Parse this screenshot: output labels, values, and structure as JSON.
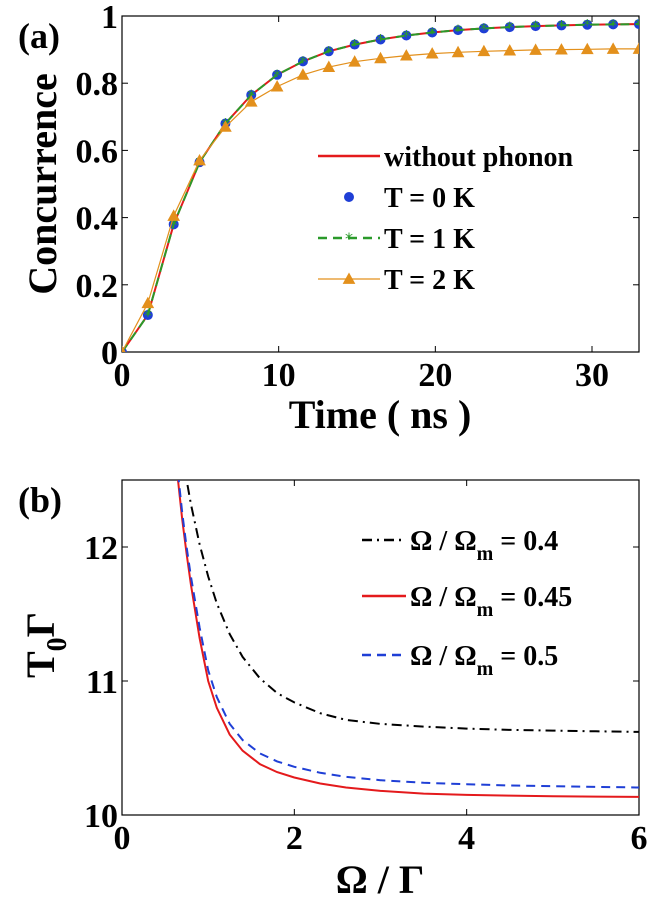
{
  "chart_data": [
    {
      "panel_label": "(a)",
      "type": "line",
      "xlabel": "Time ( ns )",
      "ylabel": "Concurrence",
      "xlim": [
        0,
        33
      ],
      "ylim": [
        0,
        1
      ],
      "xticks": [
        "0",
        "10",
        "20",
        "30"
      ],
      "yticks": [
        "0",
        "0.2",
        "0.4",
        "0.6",
        "0.8",
        "1"
      ],
      "grid": false,
      "legend_position": "center-right",
      "x": [
        0,
        1.65,
        3.3,
        4.95,
        6.6,
        8.25,
        9.9,
        11.55,
        13.2,
        14.85,
        16.5,
        18.15,
        19.8,
        21.45,
        23.1,
        24.75,
        26.4,
        28.05,
        29.7,
        31.35,
        33
      ],
      "series": [
        {
          "name": "without phonon",
          "color": "#e41a1c",
          "style": "solid",
          "marker": "none",
          "values": [
            0,
            0.11,
            0.38,
            0.565,
            0.68,
            0.765,
            0.825,
            0.865,
            0.895,
            0.915,
            0.93,
            0.942,
            0.951,
            0.958,
            0.963,
            0.967,
            0.97,
            0.972,
            0.974,
            0.975,
            0.976
          ]
        },
        {
          "name": "T = 0 K",
          "color": "#1f3fd6",
          "style": "none",
          "marker": "circle",
          "values": [
            0,
            0.11,
            0.38,
            0.565,
            0.68,
            0.765,
            0.825,
            0.865,
            0.895,
            0.915,
            0.93,
            0.942,
            0.951,
            0.958,
            0.963,
            0.967,
            0.97,
            0.972,
            0.974,
            0.975,
            0.976
          ]
        },
        {
          "name": "T = 1 K",
          "color": "#2a9a2a",
          "style": "dashed",
          "marker": "star",
          "values": [
            0,
            0.11,
            0.38,
            0.565,
            0.68,
            0.765,
            0.825,
            0.865,
            0.895,
            0.915,
            0.93,
            0.942,
            0.951,
            0.958,
            0.963,
            0.967,
            0.97,
            0.972,
            0.974,
            0.975,
            0.976
          ]
        },
        {
          "name": "T = 2 K",
          "color": "#e3901c",
          "style": "solid",
          "marker": "triangle",
          "values": [
            0,
            0.145,
            0.405,
            0.57,
            0.67,
            0.745,
            0.79,
            0.825,
            0.848,
            0.864,
            0.874,
            0.882,
            0.888,
            0.892,
            0.895,
            0.897,
            0.899,
            0.9,
            0.901,
            0.902,
            0.902
          ]
        }
      ]
    },
    {
      "panel_label": "(b)",
      "type": "line",
      "xlabel": "Ω / Γ",
      "ylabel_main": "T",
      "ylabel_sub": "0",
      "ylabel_tail": "Γ",
      "xlim": [
        0,
        6
      ],
      "ylim": [
        10,
        12.5
      ],
      "xticks": [
        "0",
        "2",
        "4",
        "6"
      ],
      "yticks": [
        "10",
        "11",
        "12"
      ],
      "grid": false,
      "legend_position": "top-right",
      "x": [
        0.65,
        0.7,
        0.75,
        0.8,
        0.9,
        1.0,
        1.1,
        1.25,
        1.4,
        1.6,
        1.8,
        2.0,
        2.3,
        2.6,
        3.0,
        3.5,
        4.0,
        4.5,
        5.0,
        5.5,
        6.0
      ],
      "series": [
        {
          "name_main": "Ω / Ω",
          "name_sub": "m",
          "name_tail": " = 0.4",
          "color": "#000000",
          "style": "dashdot",
          "values": [
            12.95,
            12.7,
            12.5,
            12.32,
            12.02,
            11.78,
            11.58,
            11.35,
            11.18,
            11.02,
            10.91,
            10.84,
            10.76,
            10.71,
            10.68,
            10.66,
            10.645,
            10.635,
            10.63,
            10.625,
            10.62
          ]
        },
        {
          "name_main": "Ω / Ω",
          "name_sub": "m",
          "name_tail": " = 0.45",
          "color": "#e41a1c",
          "style": "solid",
          "values": [
            12.5,
            12.2,
            11.95,
            11.72,
            11.32,
            11.0,
            10.8,
            10.6,
            10.48,
            10.38,
            10.32,
            10.28,
            10.235,
            10.205,
            10.18,
            10.16,
            10.15,
            10.145,
            10.14,
            10.137,
            10.135
          ]
        },
        {
          "name_main": "Ω / Ω",
          "name_sub": "m",
          "name_tail": " = 0.5",
          "color": "#1f3fd6",
          "style": "dashed",
          "values": [
            12.55,
            12.25,
            12.0,
            11.78,
            11.4,
            11.08,
            10.88,
            10.68,
            10.56,
            10.46,
            10.4,
            10.36,
            10.315,
            10.285,
            10.26,
            10.24,
            10.23,
            10.22,
            10.215,
            10.21,
            10.205
          ]
        }
      ]
    }
  ]
}
